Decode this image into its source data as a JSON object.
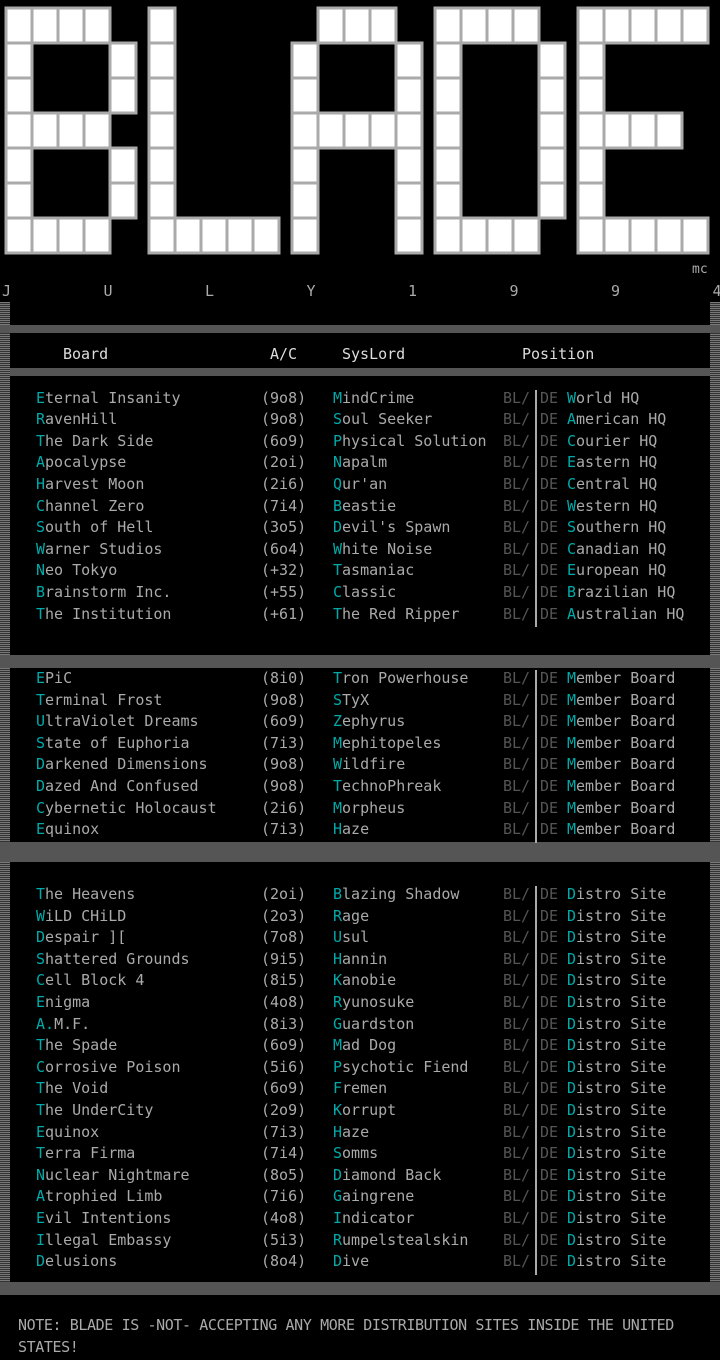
{
  "logo": {
    "text": "BLADE",
    "mark": "mc",
    "date_letters": [
      "J",
      "U",
      "L",
      "Y",
      "1",
      "9",
      "9",
      "4"
    ]
  },
  "colors": {
    "text": "#aaaaaa",
    "accent": "#00aaaa",
    "frame": "#555555",
    "bg": "#000000"
  },
  "header": {
    "board": "Board",
    "ac": "A/C",
    "syslord": "SysLord",
    "position": "Position"
  },
  "separator": {
    "bl": "BL/",
    "de": "DE"
  },
  "sections": [
    [
      [
        "Eternal Insanity",
        "(9o8)",
        "MindCrime",
        "World HQ"
      ],
      [
        "RavenHill",
        "(9o8)",
        "Soul Seeker",
        "American HQ"
      ],
      [
        "The Dark Side",
        "(6o9)",
        "Physical Solution",
        "Courier HQ"
      ],
      [
        "Apocalypse",
        "(2oi)",
        "Napalm",
        "Eastern HQ"
      ],
      [
        "Harvest Moon",
        "(2i6)",
        "Qur'an",
        "Central HQ"
      ],
      [
        "Channel Zero",
        "(7i4)",
        "Beastie",
        "Western HQ"
      ],
      [
        "South of Hell",
        "(3o5)",
        "Devil's Spawn",
        "Southern HQ"
      ],
      [
        "Warner Studios",
        "(6o4)",
        "White Noise",
        "Canadian HQ"
      ],
      [
        "Neo Tokyo",
        "(+32)",
        "Tasmaniac",
        "European HQ"
      ],
      [
        "Brainstorm Inc.",
        "(+55)",
        "Classic",
        "Brazilian HQ"
      ],
      [
        "The Institution",
        "(+61)",
        "The Red Ripper",
        "Australian HQ"
      ]
    ],
    [
      [
        "EPiC",
        "(8i0)",
        "Tron Powerhouse",
        "Member Board"
      ],
      [
        "Terminal Frost",
        "(9o8)",
        "STyX",
        "Member Board"
      ],
      [
        "UltraViolet Dreams",
        "(6o9)",
        "Zephyrus",
        "Member Board"
      ],
      [
        "State of Euphoria",
        "(7i3)",
        "Mephitopeles",
        "Member Board"
      ],
      [
        "Darkened Dimensions",
        "(9o8)",
        "Wildfire",
        "Member Board"
      ],
      [
        "Dazed And Confused",
        "(9o8)",
        "TechnoPhreak",
        "Member Board"
      ],
      [
        "Cybernetic Holocaust",
        "(2i6)",
        "Morpheus",
        "Member Board"
      ],
      [
        "Equinox",
        "(7i3)",
        "Haze",
        "Member Board"
      ]
    ],
    [
      [
        "The Heavens",
        "(2oi)",
        "Blazing Shadow",
        "Distro Site"
      ],
      [
        "WiLD CHiLD",
        "(2o3)",
        "Rage",
        "Distro Site"
      ],
      [
        "Despair ][",
        "(7o8)",
        "Usul",
        "Distro Site"
      ],
      [
        "Shattered Grounds",
        "(9i5)",
        "Hannin",
        "Distro Site"
      ],
      [
        "Cell Block 4",
        "(8i5)",
        "Kanobie",
        "Distro Site"
      ],
      [
        "Enigma",
        "(4o8)",
        "Ryunosuke",
        "Distro Site"
      ],
      [
        "A.M.F.",
        "(8i3)",
        "Guardston",
        "Distro Site"
      ],
      [
        "The Spade",
        "(6o9)",
        "Mad Dog",
        "Distro Site"
      ],
      [
        "Corrosive Poison",
        "(5i6)",
        "Psychotic Fiend",
        "Distro Site"
      ],
      [
        "The Void",
        "(6o9)",
        "Fremen",
        "Distro Site"
      ],
      [
        "The UnderCity",
        "(2o9)",
        "Korrupt",
        "Distro Site"
      ],
      [
        "Equinox",
        "(7i3)",
        "Haze",
        "Distro Site"
      ],
      [
        "Terra Firma",
        "(7i4)",
        "Somms",
        "Distro Site"
      ],
      [
        "Nuclear Nightmare",
        "(8o5)",
        "Diamond Back",
        "Distro Site"
      ],
      [
        "Atrophied Limb",
        "(7i6)",
        "Gaingrene",
        "Distro Site"
      ],
      [
        "Evil Intentions",
        "(4o8)",
        "Indicator",
        "Distro Site"
      ],
      [
        "Illegal Embassy",
        "(5i3)",
        "Rumpelstealskin",
        "Distro Site"
      ],
      [
        "Delusions",
        "(8o4)",
        "Dive",
        "Distro Site"
      ]
    ]
  ],
  "note": {
    "line1": "NOTE: BLADE IS -NOT- ACCEPTING ANY MORE DISTRIBUTION SITES INSIDE THE UNITED",
    "line2": "STATES!"
  }
}
